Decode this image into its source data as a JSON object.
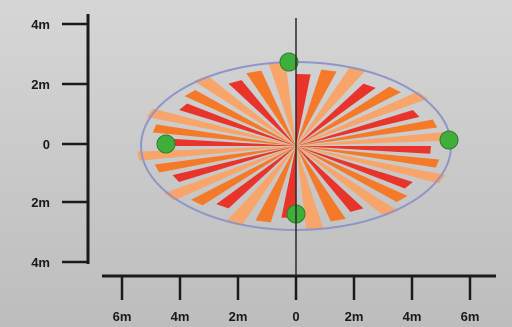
{
  "diagram": {
    "y_axis": {
      "tick_labels": [
        "4m",
        "2m",
        "0",
        "2m",
        "4m"
      ]
    },
    "x_axis": {
      "tick_labels": [
        "6m",
        "4m",
        "2m",
        "0",
        "2m",
        "4m",
        "6m"
      ]
    },
    "colors": {
      "background": "#c9c9c9",
      "axis": "#1a1a1a",
      "ellipse_outline": "#8f95c8",
      "wedge_red": "#e8342a",
      "wedge_orange": "#f47a2a",
      "wedge_light": "#f7a56a",
      "sprinkler_head": "#3fae3a"
    },
    "sprinkler_heads": [
      "top",
      "left",
      "right",
      "bottom"
    ]
  }
}
